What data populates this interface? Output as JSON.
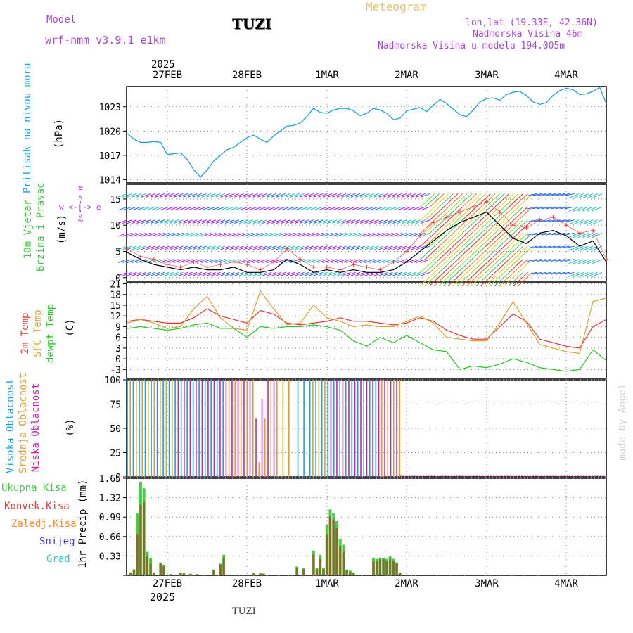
{
  "header": {
    "model_label": "Model",
    "model_name": "wrf-nmm_v3.9.1  e1km",
    "location": "TUZI",
    "product": "Meteogram",
    "lonlat": "lon,lat (19.33E, 42.36N)",
    "elevation": "Nadmorska Visina 46m",
    "model_elevation": "Nadmorska Visina u modelu 194.005m"
  },
  "colors": {
    "pressure": "#1aa0e6",
    "wind_speed": "#000000",
    "wind_gust": "#ff3030",
    "temp2m": "#ee3333",
    "sfc_temp": "#e0a030",
    "dewpoint": "#22cc22",
    "high_cloud": "#1aa0e6",
    "mid_cloud": "#e0a030",
    "low_cloud": "#cc22aa",
    "total_precip": "#44cc44",
    "conv_precip": "#ee3333",
    "frozen_precip": "#ff8833",
    "snow": "#4040dd",
    "hail": "#22cccc",
    "label_purple": "#aa44dd",
    "label_gold": "#e8c070"
  },
  "time_axis": {
    "year_label": "2025",
    "date_labels": [
      "27FEB",
      "28FEB",
      "1MAR",
      "2MAR",
      "3MAR",
      "4MAR"
    ],
    "bottom_year": "2025",
    "footer_location": "TUZI"
  },
  "chart_data": [
    {
      "type": "line",
      "panel": "pressure",
      "ylabel_left": "Pritisak na nivou mora",
      "unit": "(hPa)",
      "y_ticks": [
        1014,
        1017,
        1020,
        1023
      ],
      "ylim": [
        1013.6,
        1025.5
      ],
      "x_hours": [
        0,
        2,
        4,
        6,
        8,
        10,
        12,
        14,
        16,
        18,
        20,
        22,
        24,
        26,
        28,
        30,
        32,
        34,
        36,
        38,
        40,
        42,
        44,
        46,
        48,
        50,
        52,
        54,
        56,
        58,
        60,
        62,
        64,
        66,
        68,
        70,
        72,
        74,
        76,
        78,
        80,
        82,
        84,
        86,
        88,
        90,
        92,
        94,
        96,
        98,
        100,
        102,
        104,
        106,
        108,
        110,
        112,
        114,
        116,
        118,
        120,
        122,
        124,
        126,
        128,
        130,
        132,
        134,
        136,
        138,
        140,
        142,
        144
      ],
      "values": [
        1019.7,
        1019.0,
        1018.6,
        1018.6,
        1018.7,
        1018.6,
        1017.1,
        1017.2,
        1017.3,
        1016.5,
        1015.2,
        1014.3,
        1015.2,
        1016.3,
        1017.0,
        1017.7,
        1018.0,
        1018.6,
        1019.2,
        1019.5,
        1019.0,
        1018.6,
        1019.4,
        1020.0,
        1020.6,
        1020.7,
        1021.0,
        1021.8,
        1022.8,
        1022.3,
        1022.2,
        1022.6,
        1022.8,
        1022.8,
        1022.5,
        1021.9,
        1022.2,
        1022.8,
        1022.6,
        1022.2,
        1021.4,
        1021.6,
        1022.5,
        1022.7,
        1022.9,
        1022.4,
        1023.2,
        1023.9,
        1023.4,
        1022.7,
        1022.0,
        1021.8,
        1022.6,
        1023.6,
        1024.0,
        1024.1,
        1023.8,
        1024.5,
        1024.8,
        1024.9,
        1024.4,
        1023.6,
        1023.3,
        1023.5,
        1024.4,
        1025.0,
        1025.3,
        1025.1,
        1024.5,
        1024.6,
        1024.9,
        1025.4,
        1023.4
      ]
    },
    {
      "type": "line",
      "panel": "wind",
      "ylabel_left": [
        "10m Vjetar",
        "Brzina i Pravac"
      ],
      "unit": "(m/s)",
      "y_ticks": [
        0,
        5,
        10,
        15
      ],
      "ylim": [
        -0.7,
        17.8
      ],
      "compass_ns": "z<- -> α",
      "compass_we": "w  <-|->  e",
      "x_hours": [
        0,
        4,
        8,
        12,
        16,
        20,
        24,
        28,
        32,
        36,
        40,
        44,
        48,
        52,
        56,
        60,
        64,
        68,
        72,
        76,
        80,
        84,
        88,
        92,
        96,
        100,
        104,
        108,
        112,
        116,
        120,
        124,
        128,
        132,
        136,
        140,
        144
      ],
      "speed": [
        4.8,
        3.5,
        2.5,
        2.0,
        1.5,
        2.0,
        1.5,
        1.5,
        2.0,
        1.0,
        1.0,
        1.5,
        3.5,
        2.5,
        1.0,
        1.5,
        1.0,
        1.5,
        1.0,
        1.0,
        1.5,
        3.0,
        5.0,
        7.0,
        9.0,
        10.5,
        11.5,
        12.5,
        10.0,
        7.5,
        6.5,
        8.5,
        9.0,
        8.0,
        6.0,
        7.0,
        3.0
      ],
      "gust": [
        5.5,
        4.0,
        3.5,
        2.5,
        2.0,
        3.0,
        2.0,
        2.5,
        3.0,
        2.5,
        1.5,
        3.0,
        5.5,
        3.5,
        2.0,
        2.0,
        1.5,
        2.5,
        2.0,
        1.5,
        3.0,
        5.0,
        8.0,
        10.5,
        11.5,
        12.5,
        13.5,
        14.5,
        12.5,
        10.0,
        9.5,
        11.0,
        11.5,
        10.0,
        8.5,
        9.0,
        3.5
      ]
    },
    {
      "type": "line",
      "panel": "temperature",
      "ylabel_left": [
        "2m Temp",
        "SFC Temp",
        "dewpt Temp"
      ],
      "unit": "(C)",
      "y_ticks": [
        -3,
        0,
        3,
        6,
        9,
        12,
        15,
        18,
        21
      ],
      "ylim": [
        -5.5,
        21.3
      ],
      "x_hours": [
        0,
        4,
        8,
        12,
        16,
        20,
        24,
        28,
        32,
        36,
        40,
        44,
        48,
        52,
        56,
        60,
        64,
        68,
        72,
        76,
        80,
        84,
        88,
        92,
        96,
        100,
        104,
        108,
        112,
        116,
        120,
        124,
        128,
        132,
        136,
        140,
        144
      ],
      "series": [
        {
          "name": "2m Temp",
          "values": [
            10.5,
            11.0,
            10.5,
            10.0,
            10.0,
            11.5,
            14.0,
            12.0,
            11.0,
            10.0,
            13.5,
            12.5,
            10.0,
            9.5,
            10.0,
            10.5,
            11.5,
            10.5,
            10.5,
            10.0,
            9.5,
            10.0,
            11.5,
            10.5,
            8.0,
            6.5,
            5.5,
            5.5,
            9.0,
            12.5,
            10.5,
            5.5,
            4.5,
            3.5,
            3.0,
            9.0,
            11.0
          ]
        },
        {
          "name": "SFC Temp",
          "values": [
            10.0,
            11.0,
            10.0,
            8.5,
            9.0,
            14.0,
            17.5,
            11.5,
            8.5,
            8.0,
            19.0,
            14.0,
            9.5,
            10.0,
            15.0,
            11.5,
            10.5,
            9.0,
            9.5,
            9.0,
            9.0,
            10.5,
            12.0,
            10.0,
            6.0,
            5.5,
            5.0,
            5.0,
            10.0,
            16.0,
            10.0,
            4.0,
            3.0,
            2.0,
            1.5,
            16.0,
            17.0
          ]
        },
        {
          "name": "dewpt Temp",
          "values": [
            8.5,
            9.0,
            8.5,
            8.0,
            8.5,
            9.5,
            10.0,
            8.5,
            8.5,
            6.0,
            9.0,
            8.5,
            9.0,
            9.0,
            9.5,
            9.0,
            8.0,
            5.0,
            3.5,
            6.0,
            4.5,
            6.5,
            4.5,
            2.5,
            2.0,
            -3.0,
            -2.0,
            -2.5,
            -1.5,
            0.0,
            -1.0,
            -2.5,
            -3.0,
            -3.5,
            -3.0,
            2.5,
            -0.5
          ]
        }
      ]
    },
    {
      "type": "bar",
      "panel": "cloud",
      "ylabel_left": [
        "Visoka Oblacnost",
        "Srednja Oblacnost",
        "Niska Oblacnost"
      ],
      "unit": "(%)",
      "y_ticks": [
        0,
        25,
        50,
        75,
        100
      ],
      "ylim": [
        0,
        100
      ],
      "note": "Dense high/mid/low cloud cover bars from start to 3MAR, near zero afterwards."
    },
    {
      "type": "bar",
      "panel": "precipitation",
      "ylabel_left": [
        "Ukupna Kisa",
        "Konvek.Kisa",
        "Zaledj.Kisa",
        "Snijeg",
        "Grad"
      ],
      "unit": "1hr Precip (mm)",
      "y_ticks": [
        0,
        0.33,
        0.66,
        0.99,
        1.32,
        1.65
      ],
      "ylim": [
        0,
        1.65
      ],
      "x_hours": [
        1,
        2,
        3,
        4,
        5,
        6,
        7,
        8,
        10,
        11,
        13,
        16,
        17,
        19,
        21,
        26,
        28,
        29,
        38,
        40,
        41,
        51,
        53,
        56,
        57,
        58,
        59,
        60,
        61,
        62,
        63,
        64,
        65,
        66,
        67,
        68,
        74,
        75,
        76,
        77,
        78,
        79,
        80,
        81,
        82
      ],
      "values": [
        0.05,
        0.1,
        1.05,
        1.58,
        1.48,
        0.4,
        0.3,
        0.05,
        0.22,
        0.18,
        0.02,
        0.05,
        0.04,
        0.03,
        0.02,
        0.1,
        0.2,
        0.35,
        0.04,
        0.04,
        0.03,
        0.15,
        0.12,
        0.42,
        0.12,
        0.35,
        0.12,
        0.85,
        1.12,
        1.05,
        0.92,
        0.62,
        0.52,
        0.1,
        0.08,
        0.05,
        0.3,
        0.28,
        0.3,
        0.3,
        0.28,
        0.32,
        0.28,
        0.22,
        0.05
      ],
      "conv_values": [
        0.05,
        0.1,
        0.7,
        1.2,
        1.25,
        0.32,
        0.2,
        0.05,
        0.2,
        0.15,
        0.02,
        0.04,
        0.03,
        0.02,
        0.02,
        0.08,
        0.18,
        0.3,
        0.03,
        0.03,
        0.03,
        0.13,
        0.1,
        0.35,
        0.1,
        0.28,
        0.1,
        0.7,
        1.0,
        0.95,
        0.8,
        0.5,
        0.4,
        0.08,
        0.06,
        0.04,
        0.25,
        0.24,
        0.28,
        0.27,
        0.24,
        0.27,
        0.24,
        0.2,
        0.04
      ]
    }
  ],
  "watermark": "made by Angel"
}
